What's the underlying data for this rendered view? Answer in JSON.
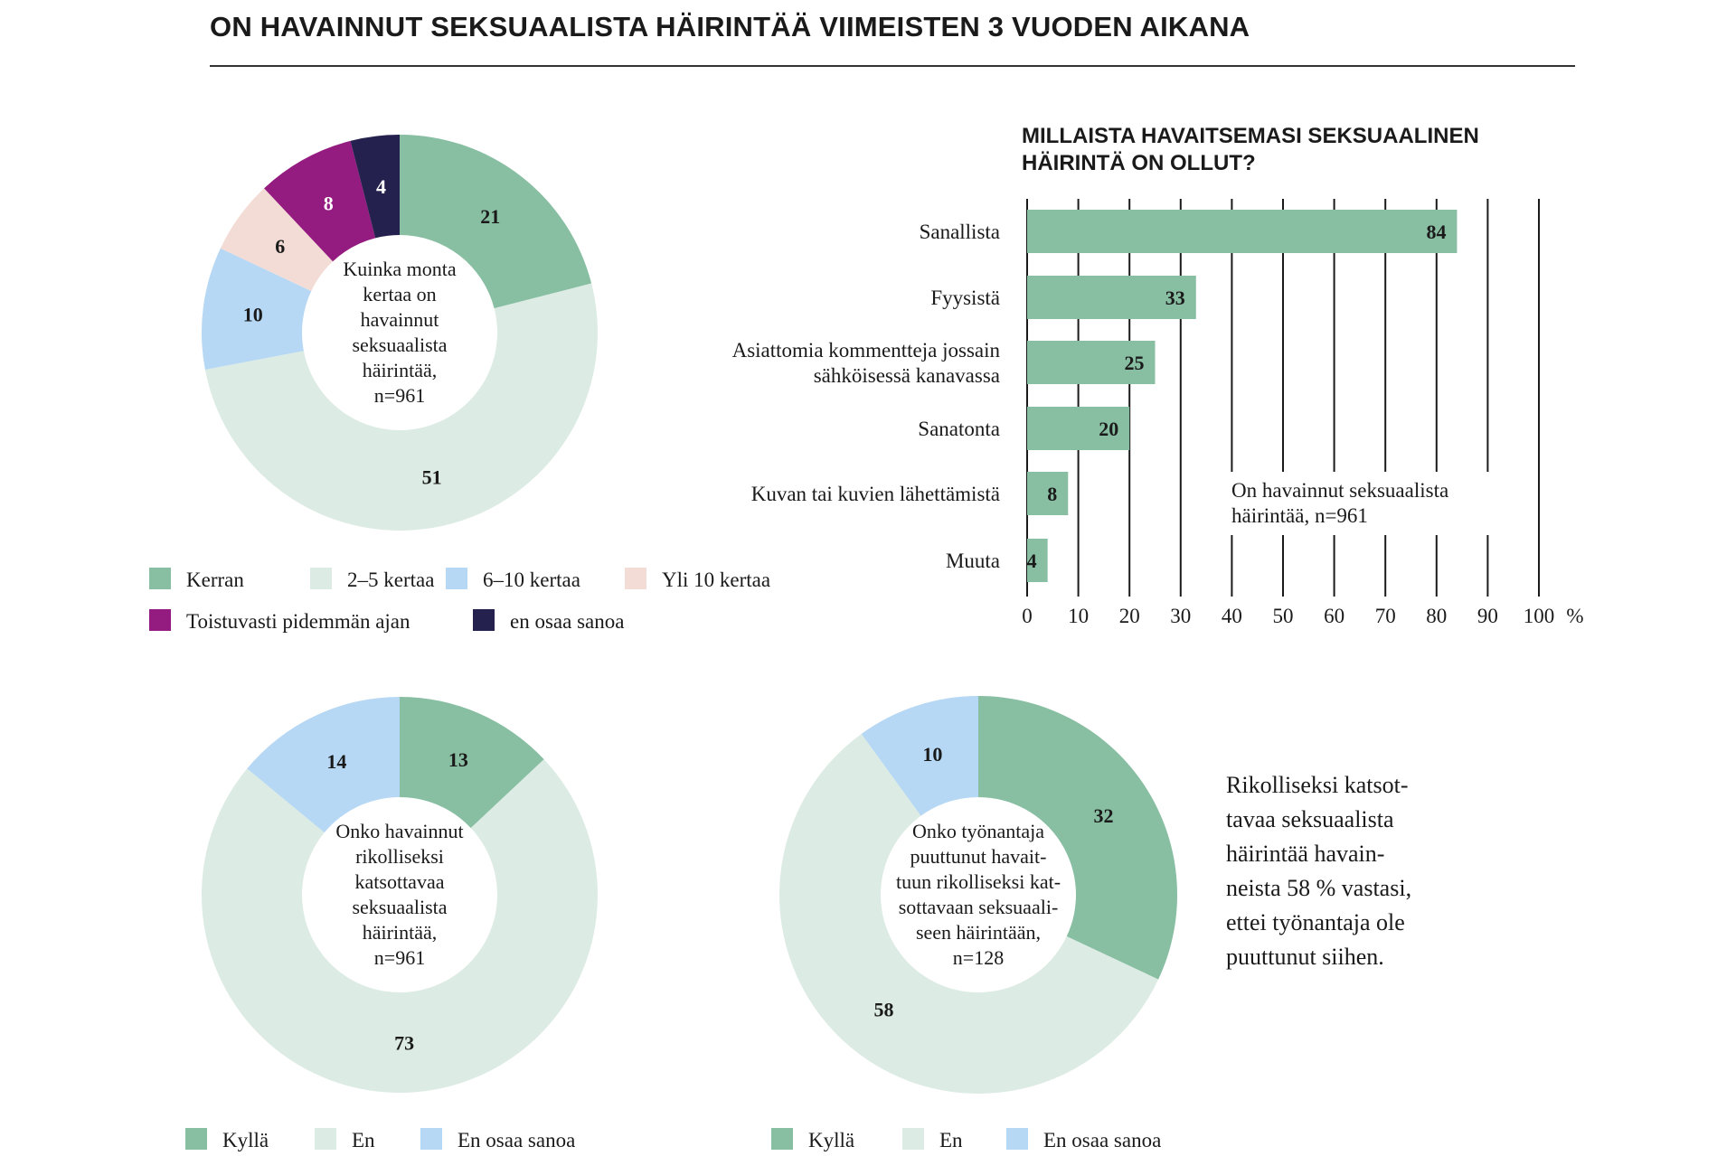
{
  "title": "ON HAVAINNUT SEKSUAALISTA HÄIRINTÄÄ VIIMEISTEN 3 VUODEN AIKANA",
  "colors": {
    "kerran": "#88bea2",
    "kertaa2_5": "#dcebe3",
    "kertaa6_10": "#b6d8f4",
    "yli10": "#f4dcd6",
    "toistuvasti": "#941b7f",
    "eos_dark": "#25214f",
    "kylla": "#88bea2",
    "en": "#dcebe3",
    "en_osaa": "#b6d8f4"
  },
  "chart_data": [
    {
      "type": "pie",
      "center_label_lines": [
        "Kuinka monta",
        "kertaa on",
        "havainnut",
        "seksuaalista",
        "häirintää,",
        "n=961"
      ],
      "labels": [
        "Kerran",
        "2–5 kertaa",
        "6–10 kertaa",
        "Yli 10 kertaa",
        "Toistuvasti pidemmän ajan",
        "en osaa sanoa"
      ],
      "values": [
        21,
        51,
        10,
        6,
        8,
        4
      ],
      "colors": [
        "#88bea2",
        "#dcebe3",
        "#b6d8f4",
        "#f4dcd6",
        "#941b7f",
        "#25214f"
      ],
      "legend": "bottom"
    },
    {
      "type": "bar",
      "orientation": "horizontal",
      "title_lines": [
        "MILLAISTA HAVAITSEMASI SEKSUAALINEN",
        "HÄIRINTÄ ON OLLUT?"
      ],
      "categories": [
        [
          "Sanallista"
        ],
        [
          "Fyysistä"
        ],
        [
          "Asiattomia kommentteja jossain",
          "sähköisessä kanavassa"
        ],
        [
          "Sanatonta"
        ],
        [
          "Kuvan tai kuvien lähettämistä"
        ],
        [
          "Muuta"
        ]
      ],
      "values": [
        84,
        33,
        25,
        20,
        8,
        4
      ],
      "xlim": [
        0,
        100
      ],
      "xticks": [
        "0",
        "10",
        "20",
        "30",
        "40",
        "50",
        "60",
        "70",
        "80",
        "90",
        "100"
      ],
      "unit": "%",
      "grid": true,
      "note_lines": [
        "On havainnut seksuaalista",
        "häirintää, n=961"
      ],
      "color": "#88bea2"
    },
    {
      "type": "pie",
      "center_label_lines": [
        "Onko havainnut",
        "rikolliseksi",
        "katsottavaa",
        "seksuaalista",
        "häirintää,",
        "n=961"
      ],
      "labels": [
        "Kyllä",
        "En",
        "En osaa sanoa"
      ],
      "values": [
        13,
        73,
        14
      ],
      "colors": [
        "#88bea2",
        "#dcebe3",
        "#b6d8f4"
      ],
      "legend": "bottom"
    },
    {
      "type": "pie",
      "center_label_lines": [
        "Onko työnantaja",
        "puuttunut havait-",
        "tuun rikolliseksi kat-",
        "sottavaan seksuaali-",
        "seen häirintään,",
        "n=128"
      ],
      "labels": [
        "Kyllä",
        "En",
        "En osaa sanoa"
      ],
      "values": [
        32,
        58,
        10
      ],
      "colors": [
        "#88bea2",
        "#dcebe3",
        "#b6d8f4"
      ],
      "legend": "bottom"
    }
  ],
  "side_note_lines": [
    "Rikolliseksi katsot-",
    "tavaa seksuaalista",
    "häirintää havain-",
    "neista 58 % vastasi,",
    "ettei työnantaja ole",
    "puuttunut siihen."
  ]
}
